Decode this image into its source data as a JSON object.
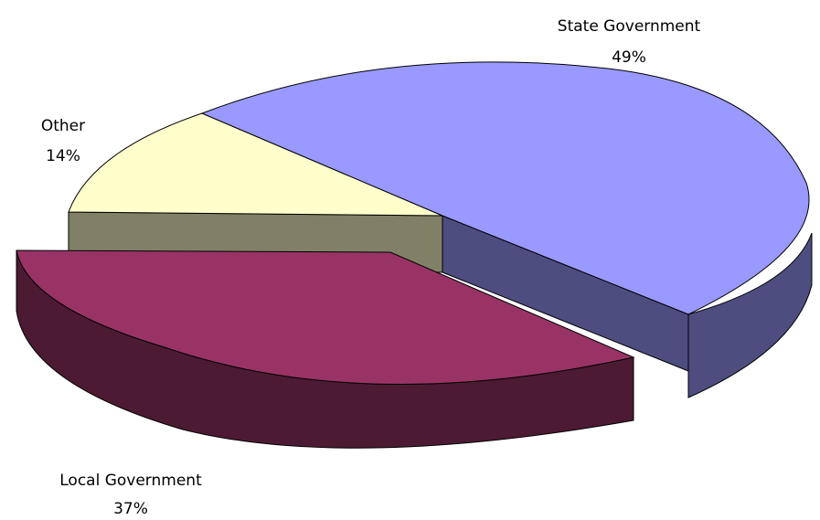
{
  "chart_data": {
    "type": "pie",
    "title": "",
    "three_d": true,
    "exploded_slice": "Local Government",
    "slices": [
      {
        "label": "State Government",
        "value": 49,
        "value_label": "49%",
        "color": "#9999FF",
        "side_color": "#4D4D80"
      },
      {
        "label": "Local Government",
        "value": 37,
        "value_label": "37%",
        "color": "#993366",
        "side_color": "#4D1A33"
      },
      {
        "label": "Other",
        "value": 14,
        "value_label": "14%",
        "color": "#FFFFCC",
        "side_color": "#808066"
      }
    ]
  }
}
